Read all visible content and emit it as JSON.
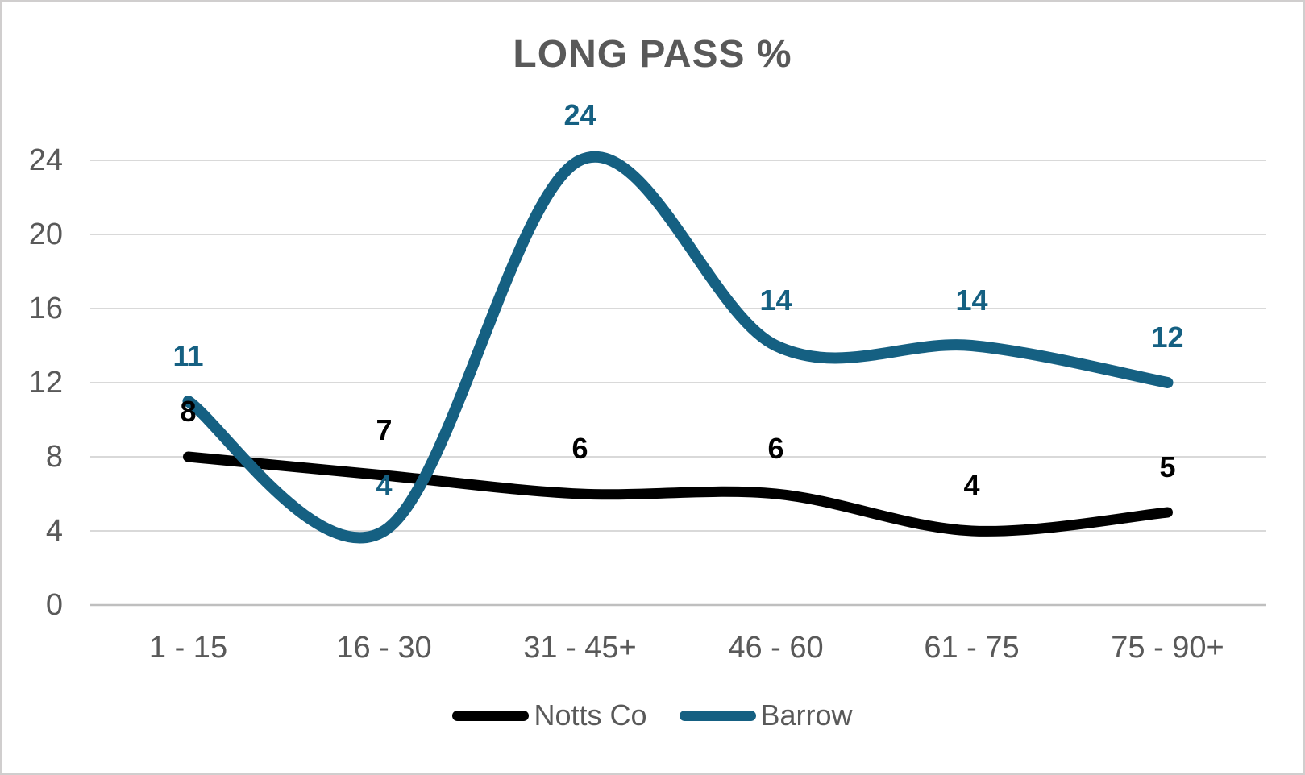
{
  "chart_data": {
    "type": "line",
    "title": "LONG PASS %",
    "categories": [
      "1 - 15",
      "16 - 30",
      "31 - 45+",
      "46 - 60",
      "61 - 75",
      "75 - 90+"
    ],
    "series": [
      {
        "name": "Notts Co",
        "color": "#000000",
        "values": [
          8,
          7,
          6,
          6,
          4,
          5
        ]
      },
      {
        "name": "Barrow",
        "color": "#156082",
        "values": [
          11,
          4,
          24,
          14,
          14,
          12
        ]
      }
    ],
    "ylim": [
      0,
      24
    ],
    "yticks": [
      0,
      4,
      8,
      12,
      16,
      20,
      24
    ],
    "grid": true,
    "smooth_lines": true,
    "data_labels": true,
    "legend_position": "bottom",
    "colors": {
      "gridline": "#d9d9d9",
      "axis_line": "#bfbfbf",
      "text": "#595959",
      "background": "#ffffff",
      "frame_border": "#d0cece"
    }
  }
}
